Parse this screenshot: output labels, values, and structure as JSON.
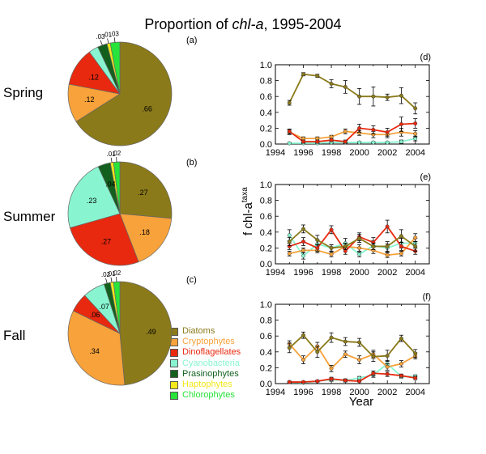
{
  "title": {
    "prefix": "Proportion of ",
    "italic": "chl-a",
    "suffix": ", 1995-2004"
  },
  "colors": {
    "Diatoms": "#8b7a1a",
    "Cryptophytes": "#f7a23a",
    "Dinoflagellates": "#e8290f",
    "Cyanobacteria": "#88f5d0",
    "Prasinophytes": "#13601e",
    "Haptophytes": "#f2e81a",
    "Chlorophytes": "#27e33a"
  },
  "chart_data": [
    {
      "type": "pie",
      "panel_label": "(a)",
      "season": "Spring",
      "categories": [
        "Diatoms",
        "Cryptophytes",
        "Dinoflagellates",
        "Cyanobacteria",
        "Prasinophytes",
        "Haptophytes",
        "Chlorophytes"
      ],
      "values": [
        0.66,
        0.12,
        0.12,
        0.03,
        0.03,
        0.01,
        0.03
      ],
      "value_labels": [
        ".66",
        ".12",
        ".12",
        "",
        ".03",
        ".01",
        ".03"
      ]
    },
    {
      "type": "pie",
      "panel_label": "(b)",
      "season": "Summer",
      "categories": [
        "Diatoms",
        "Cryptophytes",
        "Dinoflagellates",
        "Cyanobacteria",
        "Prasinophytes",
        "Haptophytes",
        "Chlorophytes"
      ],
      "values": [
        0.27,
        0.18,
        0.27,
        0.23,
        0.04,
        0.01,
        0.02
      ],
      "value_labels": [
        ".27",
        ".18",
        ".27",
        ".23",
        ".04",
        ".01",
        ".02"
      ]
    },
    {
      "type": "pie",
      "panel_label": "(c)",
      "season": "Fall",
      "categories": [
        "Diatoms",
        "Cryptophytes",
        "Dinoflagellates",
        "Cyanobacteria",
        "Prasinophytes",
        "Haptophytes",
        "Chlorophytes"
      ],
      "values": [
        0.49,
        0.34,
        0.06,
        0.07,
        0.02,
        0.01,
        0.02
      ],
      "value_labels": [
        ".49",
        ".34",
        ".06",
        ".07",
        ".02",
        ".01",
        ".02"
      ]
    },
    {
      "type": "line",
      "panel_label": "(d)",
      "ylim": [
        0,
        1.0
      ],
      "xlim": [
        1994,
        2005
      ],
      "yticks": [
        "0.0",
        "0.2",
        "0.4",
        "0.6",
        "0.8",
        "1.0"
      ],
      "x": [
        1995,
        1996,
        1997,
        1998,
        1999,
        2000,
        2001,
        2002,
        2003,
        2004
      ],
      "series": [
        {
          "taxon": "Diatoms",
          "values": [
            0.52,
            0.88,
            0.86,
            0.76,
            0.72,
            0.6,
            0.6,
            0.59,
            0.61,
            0.45
          ],
          "err": [
            0.03,
            0.02,
            0.02,
            0.05,
            0.08,
            0.1,
            0.12,
            0.04,
            0.1,
            0.07
          ]
        },
        {
          "taxon": "Cryptophytes",
          "values": [
            0.15,
            0.07,
            0.07,
            0.09,
            0.16,
            0.14,
            0.12,
            0.12,
            0.15,
            0.13
          ],
          "err": [
            0.03,
            0.02,
            0.02,
            0.02,
            0.03,
            0.03,
            0.04,
            0.04,
            0.05,
            0.04
          ]
        },
        {
          "taxon": "Dinoflagellates",
          "values": [
            0.16,
            0.03,
            0.03,
            0.05,
            0.03,
            0.2,
            0.18,
            0.15,
            0.25,
            0.26
          ],
          "err": [
            0.03,
            0.02,
            0.02,
            0.02,
            0.02,
            0.05,
            0.05,
            0.05,
            0.09,
            0.06
          ]
        },
        {
          "taxon": "Cyanobacteria",
          "values": [
            0.01,
            0.01,
            0.01,
            0.02,
            0.02,
            0.02,
            0.02,
            0.02,
            0.03,
            0.07
          ],
          "err": [
            0.01,
            0.01,
            0.01,
            0.01,
            0.01,
            0.01,
            0.01,
            0.01,
            0.02,
            0.03
          ]
        }
      ]
    },
    {
      "type": "line",
      "panel_label": "(e)",
      "ylim": [
        0,
        1.0
      ],
      "xlim": [
        1994,
        2005
      ],
      "yticks": [
        "0.0",
        "0.2",
        "0.4",
        "0.6",
        "0.8",
        "1.0"
      ],
      "x": [
        1995,
        1996,
        1997,
        1998,
        1999,
        2000,
        2001,
        2002,
        2003,
        2004
      ],
      "series": [
        {
          "taxon": "Diatoms",
          "values": [
            0.28,
            0.44,
            0.3,
            0.2,
            0.22,
            0.32,
            0.22,
            0.22,
            0.35,
            0.22
          ],
          "err": [
            0.05,
            0.05,
            0.06,
            0.04,
            0.04,
            0.05,
            0.04,
            0.06,
            0.08,
            0.06
          ]
        },
        {
          "taxon": "Cryptophytes",
          "values": [
            0.13,
            0.17,
            0.17,
            0.12,
            0.22,
            0.2,
            0.17,
            0.11,
            0.13,
            0.33
          ],
          "err": [
            0.03,
            0.03,
            0.03,
            0.03,
            0.04,
            0.04,
            0.04,
            0.03,
            0.03,
            0.05
          ]
        },
        {
          "taxon": "Dinoflagellates",
          "values": [
            0.22,
            0.28,
            0.2,
            0.43,
            0.16,
            0.34,
            0.27,
            0.47,
            0.22,
            0.16
          ],
          "err": [
            0.04,
            0.05,
            0.04,
            0.05,
            0.04,
            0.05,
            0.06,
            0.08,
            0.05,
            0.04
          ]
        },
        {
          "taxon": "Cyanobacteria",
          "values": [
            0.36,
            0.1,
            0.25,
            0.2,
            0.26,
            0.12,
            0.23,
            0.2,
            0.26,
            0.26
          ],
          "err": [
            0.07,
            0.04,
            0.05,
            0.04,
            0.06,
            0.03,
            0.06,
            0.05,
            0.06,
            0.06
          ]
        }
      ]
    },
    {
      "type": "line",
      "panel_label": "(f)",
      "ylim": [
        0,
        1.0
      ],
      "xlim": [
        1994,
        2005
      ],
      "yticks": [
        "0.0",
        "0.2",
        "0.4",
        "0.6",
        "0.8",
        "1.0"
      ],
      "x": [
        1995,
        1996,
        1997,
        1998,
        1999,
        2000,
        2001,
        2002,
        2003,
        2004
      ],
      "xticks": [
        "1994",
        "1996",
        "1998",
        "2000",
        "2002",
        "2004"
      ],
      "series": [
        {
          "taxon": "Diatoms",
          "values": [
            0.45,
            0.61,
            0.4,
            0.58,
            0.53,
            0.52,
            0.34,
            0.35,
            0.57,
            0.38
          ],
          "err": [
            0.06,
            0.04,
            0.07,
            0.06,
            0.05,
            0.05,
            0.06,
            0.07,
            0.04,
            0.05
          ]
        },
        {
          "taxon": "Cryptophytes",
          "values": [
            0.5,
            0.3,
            0.47,
            0.19,
            0.37,
            0.3,
            0.37,
            0.21,
            0.25,
            0.35
          ],
          "err": [
            0.04,
            0.05,
            0.05,
            0.04,
            0.04,
            0.05,
            0.05,
            0.04,
            0.04,
            0.04
          ]
        },
        {
          "taxon": "Dinoflagellates",
          "values": [
            0.02,
            0.02,
            0.03,
            0.06,
            0.04,
            0.03,
            0.13,
            0.12,
            0.1,
            0.07
          ],
          "err": [
            0.01,
            0.01,
            0.01,
            0.02,
            0.01,
            0.01,
            0.03,
            0.03,
            0.02,
            0.02
          ]
        },
        {
          "taxon": "Cyanobacteria",
          "values": [
            0.02,
            0.01,
            0.03,
            0.05,
            0.04,
            0.07,
            0.11,
            0.25,
            0.09,
            0.09
          ],
          "err": [
            0.01,
            0.01,
            0.01,
            0.02,
            0.02,
            0.02,
            0.03,
            0.04,
            0.02,
            0.02
          ]
        }
      ]
    }
  ],
  "legend": [
    "Diatoms",
    "Cryptophytes",
    "Dinoflagellates",
    "Cyanobacteria",
    "Prasinophytes",
    "Haptophytes",
    "Chlorophytes"
  ],
  "axes": {
    "ylabel_main": "f chl-a",
    "ylabel_sup": "taxa",
    "xlabel": "Year"
  }
}
